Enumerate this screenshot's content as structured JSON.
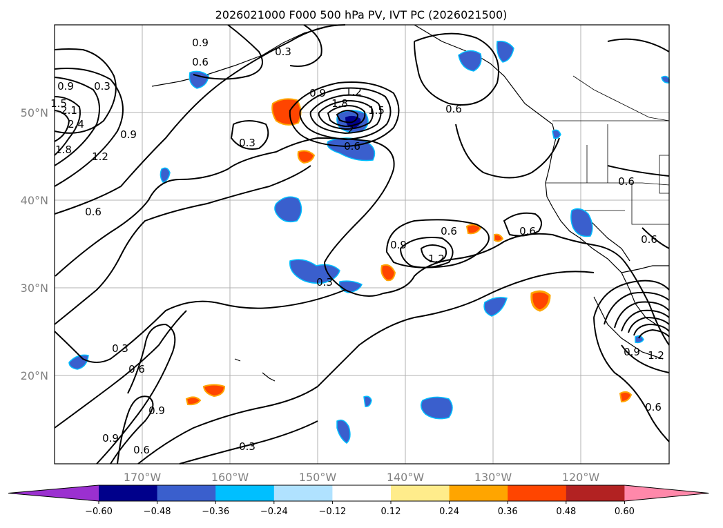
{
  "title": "2026021000 F000 500 hPa PV, IVT PC (2026021500)",
  "lat_labels": [
    "50°N",
    "40°N",
    "30°N",
    "20°N"
  ],
  "lon_labels": [
    "170°W",
    "160°W",
    "150°W",
    "140°W",
    "130°W",
    "120°W"
  ],
  "colorbar": {
    "tick_labels": [
      "−0.60",
      "−0.48",
      "−0.36",
      "−0.24",
      "−0.12",
      "0.12",
      "0.24",
      "0.36",
      "0.48",
      "0.60"
    ],
    "colors": [
      "#9b30d0",
      "#00008b",
      "#3a5fcd",
      "#00bfff",
      "#b0e2ff",
      "#ffffff",
      "#ffec8b",
      "#ffa500",
      "#ff4500",
      "#b22222",
      "#ff88aa"
    ]
  },
  "contour_labels": [
    "0.9",
    "0.3",
    "0.6",
    "0.9",
    "0.3",
    "1.5",
    "2.1",
    "2.4",
    "1.8",
    "1.2",
    "0.9",
    "0.6",
    "0.9",
    "1.2",
    "1.5",
    "1.8",
    "2",
    "0.6",
    "0.3",
    "0.6",
    "0.9",
    "1.2",
    "0.6",
    "0.6",
    "0.3",
    "0.6",
    "0.3",
    "0.6",
    "0.6",
    "0.9",
    "0.9",
    "0.6",
    "0.3",
    "1.2",
    "0.9",
    "0.6"
  ]
}
